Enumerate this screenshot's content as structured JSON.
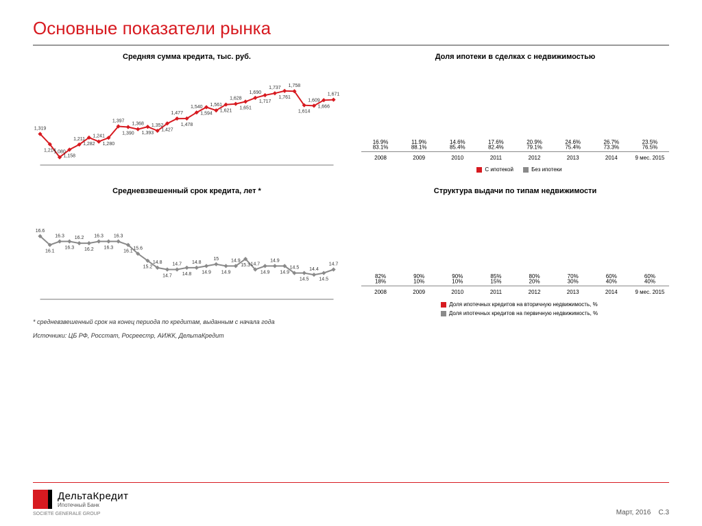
{
  "title": "Основные показатели рынка",
  "colors": {
    "red": "#d71a20",
    "gray": "#8a8a8a",
    "axis": "#777777",
    "bg": "#ffffff",
    "text": "#000000"
  },
  "chart_loan_amount": {
    "type": "line",
    "title": "Средняя сумма кредита, тыс. руб.",
    "ylim": [
      1000,
      1900
    ],
    "n": 31,
    "values": [
      1319,
      1214,
      1080,
      1158,
      1211,
      1282,
      1241,
      1280,
      1397,
      1390,
      1368,
      1393,
      1352,
      1427,
      1477,
      1478,
      1540,
      1594,
      1561,
      1621,
      1628,
      1651,
      1690,
      1717,
      1737,
      1761,
      1758,
      1614,
      1609,
      1666,
      1671
    ],
    "line_color": "#d71a20",
    "marker": "diamond",
    "marker_size": 4,
    "label_fontsize": 7
  },
  "chart_loan_term": {
    "type": "line",
    "title": "Средневзвешенный срок кредита, лет *",
    "ylim": [
      13,
      18
    ],
    "n": 31,
    "values": [
      16.6,
      16.1,
      16.3,
      16.3,
      16.2,
      16.2,
      16.3,
      16.3,
      16.3,
      16.1,
      15.6,
      15.2,
      14.8,
      14.7,
      14.7,
      14.8,
      14.8,
      14.9,
      15.0,
      14.9,
      14.9,
      15.3,
      14.7,
      14.9,
      14.9,
      14.9,
      14.5,
      14.5,
      14.4,
      14.5,
      14.7
    ],
    "line_color": "#8a8a8a",
    "marker": "diamond",
    "marker_size": 4,
    "label_fontsize": 7
  },
  "chart_mortgage_share": {
    "type": "stacked_bar_100",
    "title": "Доля ипотеки в сделках с недвижимостью",
    "categories": [
      "2008",
      "2009",
      "2010",
      "2011",
      "2012",
      "2013",
      "2014",
      "9 мес. 2015"
    ],
    "series": [
      {
        "name": "С ипотекой",
        "color": "#d71a20",
        "values": [
          16.9,
          11.9,
          14.6,
          17.6,
          20.9,
          24.6,
          26.7,
          23.5
        ],
        "label_suffix": "%"
      },
      {
        "name": "Без ипотеки",
        "color": "#8a8a8a",
        "values": [
          83.1,
          88.1,
          85.4,
          82.4,
          79.1,
          75.4,
          73.3,
          76.5
        ],
        "label_suffix": "%"
      }
    ],
    "legend": [
      "С ипотекой",
      "Без ипотеки"
    ]
  },
  "chart_property_type": {
    "type": "stacked_bar_100",
    "title": "Структура выдачи по типам недвижимости",
    "categories": [
      "2008",
      "2009",
      "2010",
      "2011",
      "2012",
      "2013",
      "2014",
      "9 мес. 2015"
    ],
    "series": [
      {
        "name": "Доля ипотечных кредитов на вторичную недвижимость, %",
        "color": "#d71a20",
        "values": [
          82,
          90,
          90,
          85,
          80,
          70,
          60,
          60
        ],
        "label_suffix": "%"
      },
      {
        "name": "Доля ипотечных кредитов на первичную недвижимость, %",
        "color": "#8a8a8a",
        "values": [
          18,
          10,
          10,
          15,
          20,
          30,
          40,
          40
        ],
        "label_suffix": "%"
      }
    ],
    "legend": [
      "Доля ипотечных кредитов на вторичную недвижимость, %",
      "Доля ипотечных кредитов на первичную недвижимость, %"
    ]
  },
  "footnote": "* средневзвешенный срок на конец периода по кредитам, выданным с начала года",
  "sources_label": "Источники: ЦБ РФ, Росстат, Росреестр, АИЖК, ДельтаКредит",
  "footer": {
    "brand": "ДельтаКредит",
    "brand_sub": "Ипотечный Банк",
    "group": "SOCIETE GENERALE GROUP",
    "date": "Март, 2016",
    "page_prefix": "С.",
    "page_num": "3"
  }
}
